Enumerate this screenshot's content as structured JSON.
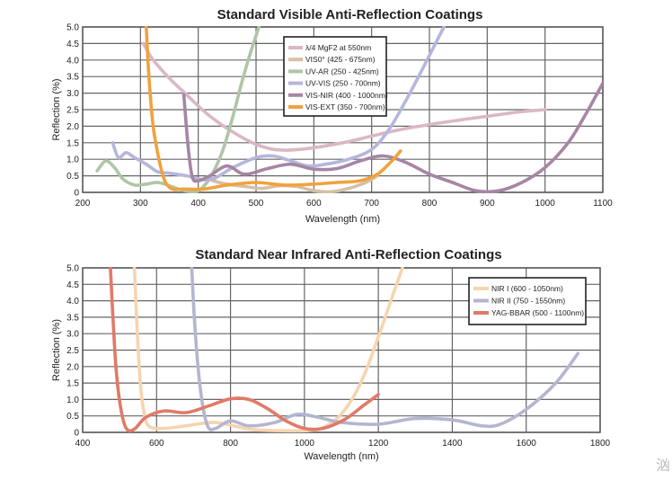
{
  "watermark": "汹",
  "chart_data": [
    {
      "type": "line",
      "title": "Standard Visible Anti-Reflection Coatings",
      "xlabel": "Wavelength (nm)",
      "ylabel": "Reflection (%)",
      "xlim": [
        200,
        1100
      ],
      "ylim": [
        0,
        5.0
      ],
      "xticks": [
        "200",
        "300",
        "400",
        "500",
        "600",
        "700",
        "800",
        "900",
        "1000",
        "1100"
      ],
      "yticks": [
        "0",
        "0.5",
        "1.0",
        "1.5",
        "2.0",
        "2.5",
        "3.0",
        "3.5",
        "4.0",
        "4.5",
        "5.0"
      ],
      "grid": true,
      "legend_position": "top-center",
      "series": [
        {
          "name": "λ/4 MgF2 at 550nm",
          "color": "#d9b8c4",
          "points": [
            [
              305,
              4.5
            ],
            [
              320,
              4.05
            ],
            [
              350,
              3.45
            ],
            [
              380,
              2.95
            ],
            [
              410,
              2.45
            ],
            [
              440,
              2.05
            ],
            [
              470,
              1.72
            ],
            [
              500,
              1.45
            ],
            [
              530,
              1.3
            ],
            [
              560,
              1.28
            ],
            [
              600,
              1.35
            ],
            [
              650,
              1.5
            ],
            [
              700,
              1.7
            ],
            [
              750,
              1.9
            ],
            [
              800,
              2.05
            ],
            [
              850,
              2.18
            ],
            [
              900,
              2.3
            ],
            [
              950,
              2.42
            ],
            [
              1000,
              2.5
            ]
          ]
        },
        {
          "name": "VIS0° (425 - 675nm)",
          "color": "#d6c0a4",
          "points": [
            [
              425,
              0.35
            ],
            [
              450,
              0.25
            ],
            [
              480,
              0.18
            ],
            [
              510,
              0.12
            ],
            [
              540,
              0.2
            ],
            [
              570,
              0.18
            ],
            [
              600,
              0.05
            ],
            [
              630,
              0.02
            ],
            [
              660,
              0.12
            ],
            [
              690,
              0.3
            ],
            [
              710,
              0.5
            ]
          ]
        },
        {
          "name": "UV-AR (250 - 425nm)",
          "color": "#afc6a6",
          "points": [
            [
              225,
              0.65
            ],
            [
              240,
              0.95
            ],
            [
              255,
              0.75
            ],
            [
              270,
              0.4
            ],
            [
              290,
              0.22
            ],
            [
              310,
              0.25
            ],
            [
              330,
              0.3
            ],
            [
              350,
              0.2
            ],
            [
              370,
              0.08
            ],
            [
              385,
              0.03
            ],
            [
              400,
              0.05
            ],
            [
              415,
              0.3
            ],
            [
              430,
              0.75
            ],
            [
              445,
              1.4
            ],
            [
              460,
              2.3
            ],
            [
              475,
              3.3
            ],
            [
              490,
              4.2
            ],
            [
              505,
              5.0
            ]
          ]
        },
        {
          "name": "UV-VIS (250 - 700nm)",
          "color": "#b6b6dc",
          "points": [
            [
              252,
              1.5
            ],
            [
              262,
              1.05
            ],
            [
              275,
              1.2
            ],
            [
              290,
              1.05
            ],
            [
              310,
              0.85
            ],
            [
              330,
              0.62
            ],
            [
              350,
              0.58
            ],
            [
              380,
              0.5
            ],
            [
              420,
              0.38
            ],
            [
              460,
              0.75
            ],
            [
              500,
              1.05
            ],
            [
              530,
              1.1
            ],
            [
              560,
              0.95
            ],
            [
              590,
              0.8
            ],
            [
              620,
              0.85
            ],
            [
              660,
              1.0
            ],
            [
              700,
              1.3
            ],
            [
              730,
              1.9
            ],
            [
              760,
              2.8
            ],
            [
              790,
              3.8
            ],
            [
              825,
              5.0
            ]
          ]
        },
        {
          "name": "VIS-NIR (400 - 1000nm)",
          "color": "#a686a4",
          "points": [
            [
              375,
              2.95
            ],
            [
              383,
              1.3
            ],
            [
              390,
              0.45
            ],
            [
              400,
              0.35
            ],
            [
              420,
              0.5
            ],
            [
              450,
              0.8
            ],
            [
              480,
              0.55
            ],
            [
              520,
              0.72
            ],
            [
              560,
              0.85
            ],
            [
              600,
              0.7
            ],
            [
              640,
              0.72
            ],
            [
              680,
              0.95
            ],
            [
              720,
              1.1
            ],
            [
              760,
              0.9
            ],
            [
              800,
              0.55
            ],
            [
              840,
              0.3
            ],
            [
              880,
              0.05
            ],
            [
              920,
              0.05
            ],
            [
              960,
              0.3
            ],
            [
              1000,
              0.75
            ],
            [
              1040,
              1.5
            ],
            [
              1070,
              2.35
            ],
            [
              1100,
              3.3
            ]
          ]
        },
        {
          "name": "VIS-EXT (350 - 700nm)",
          "color": "#f0a23e",
          "points": [
            [
              310,
              5.0
            ],
            [
              315,
              3.4
            ],
            [
              322,
              2.0
            ],
            [
              332,
              1.0
            ],
            [
              342,
              0.35
            ],
            [
              355,
              0.1
            ],
            [
              375,
              0.1
            ],
            [
              410,
              0.1
            ],
            [
              450,
              0.22
            ],
            [
              500,
              0.3
            ],
            [
              550,
              0.22
            ],
            [
              600,
              0.25
            ],
            [
              640,
              0.3
            ],
            [
              680,
              0.35
            ],
            [
              710,
              0.55
            ],
            [
              735,
              0.95
            ],
            [
              750,
              1.25
            ]
          ]
        }
      ]
    },
    {
      "type": "line",
      "title": "Standard Near Infrared Anti-Reflection Coatings",
      "xlabel": "Wavelength (nm)",
      "ylabel": "Reflection (%)",
      "xlim": [
        400,
        1800
      ],
      "ylim": [
        0,
        5.0
      ],
      "xticks": [
        "400",
        "600",
        "800",
        "1000",
        "1200",
        "1400",
        "1600",
        "1800"
      ],
      "yticks": [
        "0",
        "0.5",
        "1.0",
        "1.5",
        "2.0",
        "2.5",
        "3.0",
        "3.5",
        "4.0",
        "4.5",
        "5.0"
      ],
      "grid": true,
      "legend_position": "top-right",
      "series": [
        {
          "name": "NIR I (600 - 1050nm)",
          "color": "#f7d4b0",
          "points": [
            [
              540,
              5.0
            ],
            [
              548,
              3.0
            ],
            [
              556,
              1.5
            ],
            [
              566,
              0.6
            ],
            [
              580,
              0.18
            ],
            [
              620,
              0.12
            ],
            [
              680,
              0.2
            ],
            [
              760,
              0.3
            ],
            [
              850,
              0.1
            ],
            [
              940,
              0.05
            ],
            [
              1030,
              0.08
            ],
            [
              1080,
              0.35
            ],
            [
              1120,
              0.85
            ],
            [
              1160,
              1.7
            ],
            [
              1200,
              2.9
            ],
            [
              1240,
              4.2
            ],
            [
              1265,
              5.0
            ]
          ]
        },
        {
          "name": "NIR II (750 - 1550nm)",
          "color": "#b4b6cf",
          "points": [
            [
              695,
              5.0
            ],
            [
              702,
              3.5
            ],
            [
              712,
              2.0
            ],
            [
              725,
              0.8
            ],
            [
              740,
              0.15
            ],
            [
              760,
              0.12
            ],
            [
              800,
              0.35
            ],
            [
              850,
              0.2
            ],
            [
              920,
              0.3
            ],
            [
              980,
              0.55
            ],
            [
              1040,
              0.45
            ],
            [
              1100,
              0.3
            ],
            [
              1200,
              0.25
            ],
            [
              1300,
              0.42
            ],
            [
              1400,
              0.38
            ],
            [
              1480,
              0.2
            ],
            [
              1530,
              0.25
            ],
            [
              1600,
              0.7
            ],
            [
              1680,
              1.5
            ],
            [
              1740,
              2.4
            ]
          ]
        },
        {
          "name": "YAG-BBAR (500 - 1100nm)",
          "color": "#e07a68",
          "points": [
            [
              475,
              5.0
            ],
            [
              482,
              3.5
            ],
            [
              490,
              2.0
            ],
            [
              502,
              0.8
            ],
            [
              518,
              0.12
            ],
            [
              540,
              0.1
            ],
            [
              570,
              0.45
            ],
            [
              620,
              0.65
            ],
            [
              680,
              0.6
            ],
            [
              740,
              0.8
            ],
            [
              800,
              1.02
            ],
            [
              850,
              1.0
            ],
            [
              900,
              0.72
            ],
            [
              950,
              0.35
            ],
            [
              1000,
              0.12
            ],
            [
              1050,
              0.12
            ],
            [
              1110,
              0.4
            ],
            [
              1160,
              0.82
            ],
            [
              1200,
              1.15
            ]
          ]
        }
      ]
    }
  ]
}
